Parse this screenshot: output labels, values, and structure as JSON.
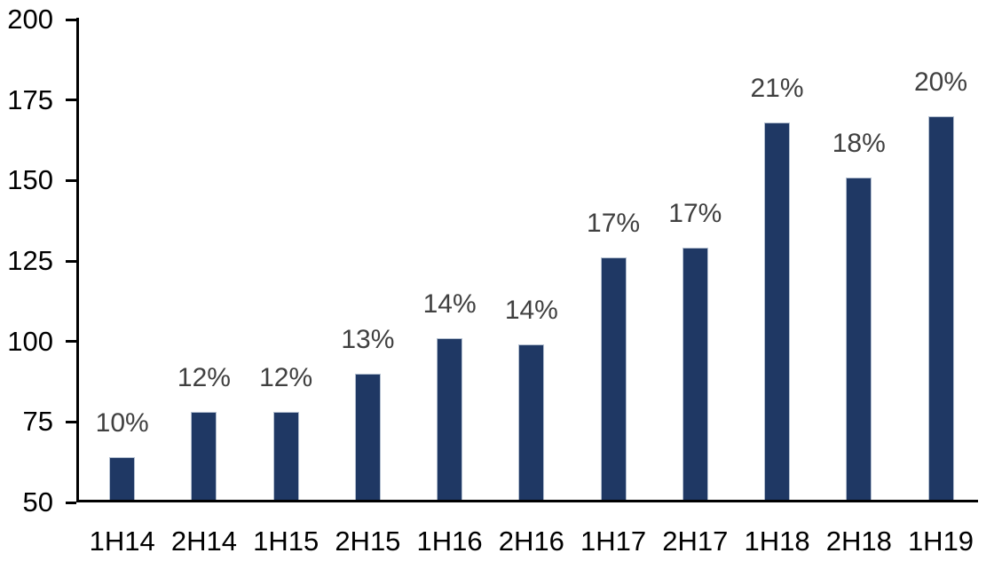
{
  "chart_data": {
    "type": "bar",
    "title": "",
    "xlabel": "",
    "ylabel": "",
    "categories": [
      "1H14",
      "2H14",
      "1H15",
      "2H15",
      "1H16",
      "2H16",
      "1H17",
      "2H17",
      "1H18",
      "2H18",
      "1H19"
    ],
    "series": [
      {
        "name": "value",
        "values": [
          64,
          78,
          78,
          90,
          101,
          99,
          126,
          129,
          168,
          151,
          170
        ],
        "data_labels": [
          "10%",
          "12%",
          "12%",
          "13%",
          "14%",
          "14%",
          "17%",
          "17%",
          "21%",
          "18%",
          "20%"
        ]
      }
    ],
    "ylim": [
      50,
      200
    ],
    "yticks": [
      50,
      75,
      100,
      125,
      150,
      175,
      200
    ],
    "grid": false,
    "legend_position": "none",
    "colors": {
      "bar_fill": "#1F3864",
      "bar_border": "#b3bfd0",
      "data_label": "#404040",
      "axis_text": "#000000",
      "axis_line": "#000000",
      "background": "#ffffff"
    }
  }
}
